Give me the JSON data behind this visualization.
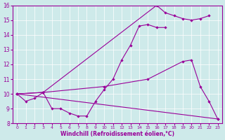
{
  "xlabel": "Windchill (Refroidissement éolien,°C)",
  "xlim": [
    -0.5,
    23.5
  ],
  "ylim": [
    8,
    16
  ],
  "xticks": [
    0,
    1,
    2,
    3,
    4,
    5,
    6,
    7,
    8,
    9,
    10,
    11,
    12,
    13,
    14,
    15,
    16,
    17,
    18,
    19,
    20,
    21,
    22,
    23
  ],
  "yticks": [
    8,
    9,
    10,
    11,
    12,
    13,
    14,
    15,
    16
  ],
  "bg_color": "#ceeaea",
  "line_color": "#990099",
  "lines": [
    {
      "x": [
        0,
        1,
        2,
        3,
        4,
        5,
        6,
        7,
        8,
        9,
        10,
        11,
        12,
        13,
        14,
        15,
        16,
        17
      ],
      "y": [
        10,
        9.5,
        9.7,
        10.1,
        9.0,
        9.0,
        8.7,
        8.5,
        8.5,
        9.5,
        10.3,
        11.0,
        12.3,
        13.3,
        14.6,
        14.7,
        14.5,
        14.5
      ]
    },
    {
      "comment": "peak line: 0,10 -> 3,10.1 -> 16,16 -> 17,15.5 -> 22,15.3",
      "x": [
        0,
        3,
        16,
        17,
        18,
        19,
        20,
        21,
        22
      ],
      "y": [
        10,
        10.1,
        16.0,
        15.5,
        15.3,
        15.1,
        15.0,
        15.1,
        15.3
      ]
    },
    {
      "x": [
        0,
        3,
        10,
        15,
        19,
        20,
        21,
        22,
        23
      ],
      "y": [
        10,
        10.1,
        10.5,
        11.0,
        12.2,
        12.3,
        10.5,
        9.5,
        8.3
      ]
    },
    {
      "x": [
        0,
        23
      ],
      "y": [
        10,
        8.3
      ]
    }
  ]
}
